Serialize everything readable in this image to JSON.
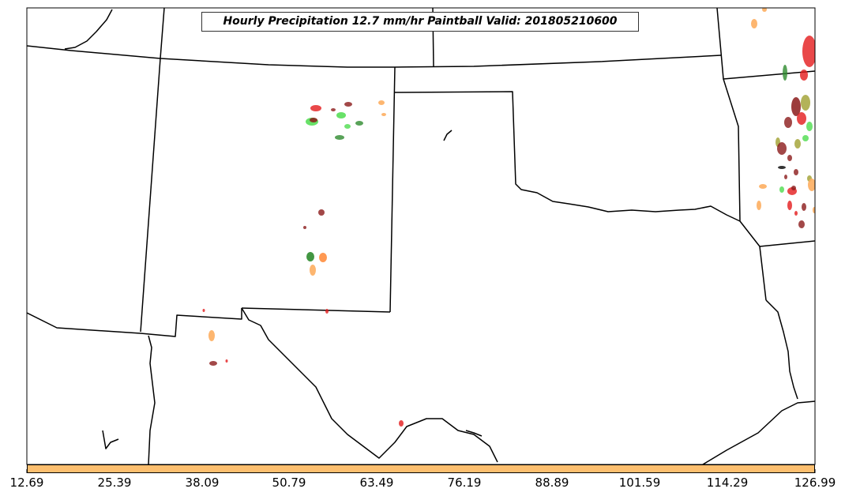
{
  "title": "Hourly Precipitation 12.7 mm/hr Paintball Valid: 201805210600",
  "colorbar": {
    "color": "#fdbf6f",
    "ticks": [
      "12.69",
      "25.39",
      "38.09",
      "50.79",
      "63.49",
      "76.19",
      "88.89",
      "101.59",
      "114.29",
      "126.99"
    ]
  },
  "colors": {
    "background": "#ffffff",
    "borders": "#000000",
    "paint_green_light": "#4ddc4d",
    "paint_green_dark": "#2e8b2e",
    "paint_red": "#e31a1c",
    "paint_darkred": "#8b1a1a",
    "paint_orange": "#ff7f27",
    "paint_lightorange": "#fdae61",
    "paint_olive": "#a0a030"
  }
}
